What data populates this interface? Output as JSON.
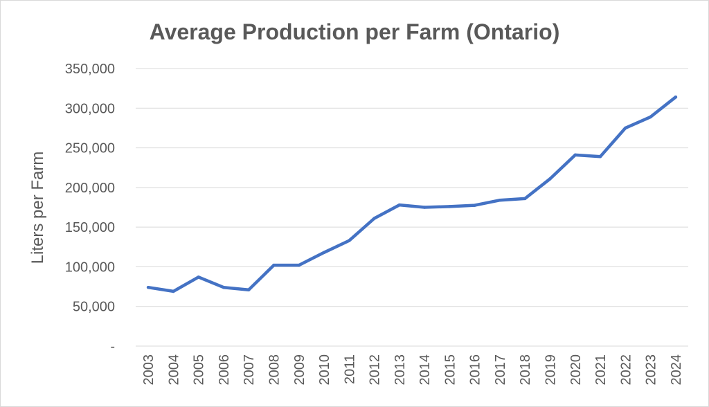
{
  "chart_data": {
    "type": "line",
    "title": "Average Production per Farm (Ontario)",
    "xlabel": "",
    "ylabel": "Liters per Farm",
    "categories": [
      "2003",
      "2004",
      "2005",
      "2006",
      "2007",
      "2008",
      "2009",
      "2010",
      "2011",
      "2012",
      "2013",
      "2014",
      "2015",
      "2016",
      "2017",
      "2018",
      "2019",
      "2020",
      "2021",
      "2022",
      "2023",
      "2024"
    ],
    "series": [
      {
        "color": "#4472c4",
        "values": [
          74000,
          69000,
          87000,
          74000,
          71000,
          102000,
          102000,
          118000,
          133000,
          161000,
          178000,
          175000,
          176000,
          177500,
          184000,
          186000,
          211000,
          241000,
          239000,
          275000,
          289000,
          314000
        ]
      }
    ],
    "ylim": [
      0,
      350000
    ],
    "yticks": [
      {
        "value": 0,
        "label": "-"
      },
      {
        "value": 50000,
        "label": "50,000"
      },
      {
        "value": 100000,
        "label": "100,000"
      },
      {
        "value": 150000,
        "label": "150,000"
      },
      {
        "value": 200000,
        "label": "200,000"
      },
      {
        "value": 250000,
        "label": "250,000"
      },
      {
        "value": 300000,
        "label": "300,000"
      },
      {
        "value": 350000,
        "label": "350,000"
      }
    ],
    "grid": true,
    "legend": "none"
  }
}
